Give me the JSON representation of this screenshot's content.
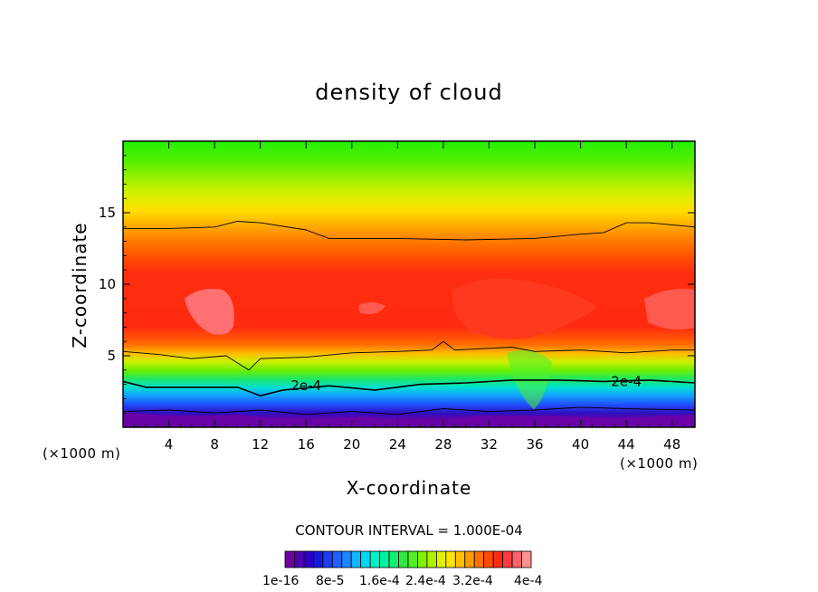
{
  "chart_data": {
    "type": "heatmap",
    "title": "density of cloud",
    "xlabel": "X-coordinate",
    "ylabel": "Z-coordinate",
    "x_unit_left": "(×1000 m)",
    "x_unit_right": "(×1000 m)",
    "xlim": [
      0,
      50
    ],
    "ylim": [
      0,
      20
    ],
    "x_ticks": [
      4,
      8,
      12,
      16,
      20,
      24,
      28,
      32,
      36,
      40,
      44,
      48
    ],
    "y_ticks": [
      5,
      10,
      15
    ],
    "contour_interval_text": "CONTOUR INTERVAL = 1.000E-04",
    "contour_labels": [
      {
        "text": "2e-4",
        "x": 16.0,
        "y": 2.9
      },
      {
        "text": "2e-4",
        "x": 44.0,
        "y": 3.2
      }
    ],
    "contour_lines": [
      {
        "level": "top",
        "points": [
          [
            0,
            13.9
          ],
          [
            4,
            13.9
          ],
          [
            8,
            14.0
          ],
          [
            10,
            14.4
          ],
          [
            12,
            14.3
          ],
          [
            16,
            13.8
          ],
          [
            18,
            13.2
          ],
          [
            24,
            13.2
          ],
          [
            30,
            13.1
          ],
          [
            36,
            13.2
          ],
          [
            40,
            13.5
          ],
          [
            42,
            13.6
          ],
          [
            44,
            14.3
          ],
          [
            46,
            14.3
          ],
          [
            50,
            14.0
          ]
        ]
      },
      {
        "level": "upper-mid",
        "points": [
          [
            0,
            5.3
          ],
          [
            3,
            5.1
          ],
          [
            6,
            4.8
          ],
          [
            9,
            5.0
          ],
          [
            11,
            4.0
          ],
          [
            12,
            4.8
          ],
          [
            16,
            4.9
          ],
          [
            20,
            5.2
          ],
          [
            24,
            5.3
          ],
          [
            27,
            5.4
          ],
          [
            28,
            6.0
          ],
          [
            29,
            5.4
          ],
          [
            34,
            5.6
          ],
          [
            36,
            5.3
          ],
          [
            40,
            5.4
          ],
          [
            44,
            5.2
          ],
          [
            48,
            5.4
          ],
          [
            50,
            5.4
          ]
        ]
      },
      {
        "level": "2e-4",
        "points": [
          [
            0,
            3.2
          ],
          [
            2,
            2.8
          ],
          [
            6,
            2.8
          ],
          [
            10,
            2.8
          ],
          [
            12,
            2.2
          ],
          [
            14,
            2.6
          ],
          [
            18,
            2.9
          ],
          [
            22,
            2.6
          ],
          [
            26,
            3.0
          ],
          [
            30,
            3.1
          ],
          [
            34,
            3.3
          ],
          [
            38,
            3.3
          ],
          [
            42,
            3.2
          ],
          [
            46,
            3.3
          ],
          [
            50,
            3.1
          ]
        ]
      },
      {
        "level": "low",
        "points": [
          [
            0,
            1.1
          ],
          [
            4,
            1.2
          ],
          [
            8,
            1.0
          ],
          [
            12,
            1.2
          ],
          [
            16,
            0.9
          ],
          [
            20,
            1.1
          ],
          [
            24,
            0.9
          ],
          [
            28,
            1.3
          ],
          [
            32,
            1.1
          ],
          [
            36,
            1.2
          ],
          [
            40,
            1.4
          ],
          [
            44,
            1.3
          ],
          [
            50,
            1.2
          ]
        ]
      }
    ],
    "colorbar": {
      "colors": [
        "#7000a0",
        "#5000b0",
        "#3000c0",
        "#1818d8",
        "#1f3cf0",
        "#2060ff",
        "#1a88ff",
        "#10b4ff",
        "#00d8f0",
        "#00f0c8",
        "#00f0a0",
        "#10f070",
        "#30e840",
        "#50f020",
        "#80f000",
        "#b0f000",
        "#e0f000",
        "#ffe400",
        "#ffc000",
        "#ff9a00",
        "#ff7000",
        "#ff4a00",
        "#ff2a10",
        "#ff3a40",
        "#ff6068",
        "#ff9090"
      ],
      "labels": [
        "1e-16",
        "8e-5",
        "1.6e-4",
        "2.4e-4",
        "3.2e-4",
        "4e-4"
      ]
    }
  }
}
